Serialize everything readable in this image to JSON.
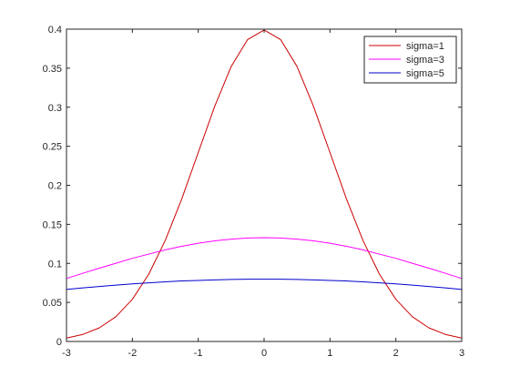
{
  "chart_data": {
    "type": "line",
    "x": [
      -3,
      -2.75,
      -2.5,
      -2.25,
      -2,
      -1.75,
      -1.5,
      -1.25,
      -1,
      -0.75,
      -0.5,
      -0.25,
      0,
      0.25,
      0.5,
      0.75,
      1,
      1.25,
      1.5,
      1.75,
      2,
      2.25,
      2.5,
      2.75,
      3
    ],
    "series": [
      {
        "name": "sigma=1",
        "color": "#cc0000",
        "values": [
          0.0044,
          0.0091,
          0.0175,
          0.0317,
          0.054,
          0.0863,
          0.1295,
          0.1826,
          0.242,
          0.3011,
          0.3521,
          0.3867,
          0.3989,
          0.3867,
          0.3521,
          0.3011,
          0.242,
          0.1826,
          0.1295,
          0.0863,
          0.054,
          0.0317,
          0.0175,
          0.0091,
          0.0044
        ]
      },
      {
        "name": "sigma=3",
        "color": "#ff00ff",
        "values": [
          0.0807,
          0.0874,
          0.0939,
          0.1001,
          0.1065,
          0.1119,
          0.1174,
          0.1219,
          0.1258,
          0.1289,
          0.1311,
          0.1325,
          0.133,
          0.1325,
          0.1311,
          0.1289,
          0.1258,
          0.1219,
          0.1174,
          0.1119,
          0.1065,
          0.1001,
          0.0939,
          0.0874,
          0.0807
        ]
      },
      {
        "name": "sigma=5",
        "color": "#0000cc",
        "values": [
          0.0666,
          0.0686,
          0.0704,
          0.0721,
          0.0737,
          0.0751,
          0.0764,
          0.0775,
          0.0782,
          0.0789,
          0.0794,
          0.0797,
          0.0798,
          0.0797,
          0.0794,
          0.0789,
          0.0782,
          0.0775,
          0.0764,
          0.0751,
          0.0737,
          0.0721,
          0.0704,
          0.0686,
          0.0666
        ]
      }
    ],
    "xlim": [
      -3,
      3
    ],
    "ylim": [
      0,
      0.4
    ],
    "xticks": [
      "-3",
      "-2",
      "-1",
      "0",
      "1",
      "2",
      "3"
    ],
    "yticks": [
      "0",
      "0.05",
      "0.1",
      "0.15",
      "0.2",
      "0.25",
      "0.3",
      "0.35",
      "0.4"
    ],
    "grid": false,
    "legend_position": "top-right",
    "title": "",
    "xlabel": "",
    "ylabel": ""
  }
}
